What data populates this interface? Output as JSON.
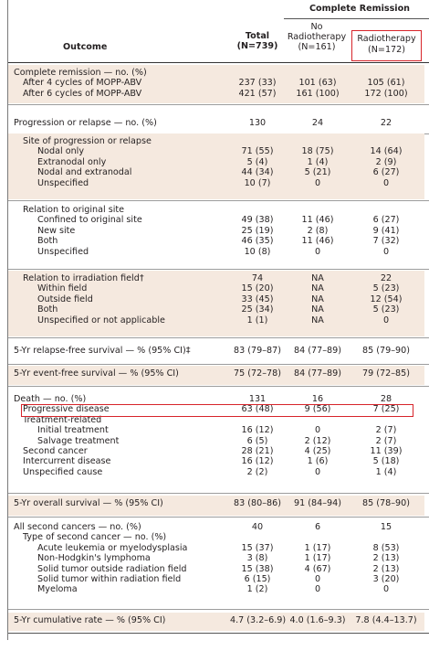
{
  "header": {
    "complete_remission": "Complete Remission",
    "outcome": "Outcome",
    "total_line1": "Total",
    "total_line2": "(N=739)",
    "norad_line1": "No",
    "norad_line2": "Radiotherapy",
    "norad_line3": "(N=161)",
    "rad_line1": "Radiotherapy",
    "rad_line2": "(N=172)"
  },
  "sections": [
    {
      "tint": true,
      "rows": [
        {
          "label": "Complete remission — no. (%)",
          "indent": 0,
          "total": "",
          "norad": "",
          "rad": ""
        },
        {
          "label": "After 4 cycles of MOPP-ABV",
          "indent": 1,
          "total": "237 (33)",
          "norad": "101 (63)",
          "rad": "105 (61)"
        },
        {
          "label": "After 6 cycles of MOPP-ABV",
          "indent": 1,
          "total": "421 (57)",
          "norad": "161 (100)",
          "rad": "172 (100)"
        }
      ]
    },
    {
      "tint": false,
      "rows": [
        {
          "label": "Progression or relapse — no. (%)",
          "indent": 0,
          "total": "130",
          "norad": "24",
          "rad": "22"
        }
      ]
    },
    {
      "tint": true,
      "rows": [
        {
          "label": "Site of progression or relapse",
          "indent": 1,
          "total": "",
          "norad": "",
          "rad": ""
        },
        {
          "label": "Nodal only",
          "indent": 2,
          "total": "71 (55)",
          "norad": "18 (75)",
          "rad": "14 (64)"
        },
        {
          "label": "Extranodal only",
          "indent": 2,
          "total": "5 (4)",
          "norad": "1 (4)",
          "rad": "2 (9)"
        },
        {
          "label": "Nodal and extranodal",
          "indent": 2,
          "total": "44 (34)",
          "norad": "5 (21)",
          "rad": "6 (27)"
        },
        {
          "label": "Unspecified",
          "indent": 2,
          "total": "10 (7)",
          "norad": "0",
          "rad": "0"
        }
      ]
    },
    {
      "tint": false,
      "rows": [
        {
          "label": "Relation to original site",
          "indent": 1,
          "total": "",
          "norad": "",
          "rad": ""
        },
        {
          "label": "Confined to original site",
          "indent": 2,
          "total": "49 (38)",
          "norad": "11 (46)",
          "rad": "6 (27)"
        },
        {
          "label": "New site",
          "indent": 2,
          "total": "25 (19)",
          "norad": "2 (8)",
          "rad": "9 (41)"
        },
        {
          "label": "Both",
          "indent": 2,
          "total": "46 (35)",
          "norad": "11 (46)",
          "rad": "7 (32)"
        },
        {
          "label": "Unspecified",
          "indent": 2,
          "total": "10 (8)",
          "norad": "0",
          "rad": "0"
        }
      ]
    },
    {
      "tint": true,
      "rows": [
        {
          "label": "Relation to irradiation field†",
          "indent": 1,
          "total": "74",
          "norad": "NA",
          "rad": "22"
        },
        {
          "label": "Within field",
          "indent": 2,
          "total": "15 (20)",
          "norad": "NA",
          "rad": "5 (23)"
        },
        {
          "label": "Outside field",
          "indent": 2,
          "total": "33 (45)",
          "norad": "NA",
          "rad": "12 (54)"
        },
        {
          "label": "Both",
          "indent": 2,
          "total": "25 (34)",
          "norad": "NA",
          "rad": "5 (23)"
        },
        {
          "label": "Unspecified or not applicable",
          "indent": 2,
          "total": "1 (1)",
          "norad": "NA",
          "rad": "0"
        }
      ]
    },
    {
      "tint": false,
      "rows": [
        {
          "label": "5-Yr relapse-free survival — % (95% CI)‡",
          "indent": 0,
          "total": "83 (79–87)",
          "norad": "84 (77–89)",
          "rad": "85 (79–90)"
        }
      ]
    },
    {
      "tint": true,
      "rows": [
        {
          "label": "5-Yr event-free survival — % (95% CI)",
          "indent": 0,
          "total": "75 (72–78)",
          "norad": "84 (77–89)",
          "rad": "79 (72–85)"
        }
      ]
    },
    {
      "tint": false,
      "rows": [
        {
          "label": "Death — no. (%)",
          "indent": 0,
          "total": "131",
          "norad": "16",
          "rad": "28"
        },
        {
          "label": "Progressive disease",
          "indent": 1,
          "total": "63 (48)",
          "norad": "9 (56)",
          "rad": "7 (25)"
        },
        {
          "label": "Treatment-related",
          "indent": 1,
          "total": "",
          "norad": "",
          "rad": ""
        },
        {
          "label": "Initial treatment",
          "indent": 2,
          "total": "16 (12)",
          "norad": "0",
          "rad": "2 (7)"
        },
        {
          "label": "Salvage treatment",
          "indent": 2,
          "total": "6 (5)",
          "norad": "2 (12)",
          "rad": "2 (7)"
        },
        {
          "label": "Second cancer",
          "indent": 1,
          "total": "28 (21)",
          "norad": "4 (25)",
          "rad": "11 (39)"
        },
        {
          "label": "Intercurrent disease",
          "indent": 1,
          "total": "16 (12)",
          "norad": "1 (6)",
          "rad": "5 (18)"
        },
        {
          "label": "Unspecified cause",
          "indent": 1,
          "total": "2 (2)",
          "norad": "0",
          "rad": "1 (4)"
        }
      ]
    },
    {
      "tint": true,
      "rows": [
        {
          "label": "5-Yr overall survival — % (95% CI)",
          "indent": 0,
          "total": "83 (80–86)",
          "norad": "91 (84–94)",
          "rad": "85 (78–90)"
        }
      ]
    },
    {
      "tint": false,
      "rows": [
        {
          "label": "All second cancers — no. (%)",
          "indent": 0,
          "total": "40",
          "norad": "6",
          "rad": "15"
        },
        {
          "label": "Type of second cancer — no. (%)",
          "indent": 1,
          "total": "",
          "norad": "",
          "rad": ""
        },
        {
          "label": "Acute leukemia or myelodysplasia",
          "indent": 2,
          "total": "15 (37)",
          "norad": "1 (17)",
          "rad": "8 (53)"
        },
        {
          "label": "Non-Hodgkin's lymphoma",
          "indent": 2,
          "total": "3 (8)",
          "norad": "1 (17)",
          "rad": "2 (13)"
        },
        {
          "label": "Solid tumor outside radiation field",
          "indent": 2,
          "total": "15 (38)",
          "norad": "4 (67)",
          "rad": "2 (13)"
        },
        {
          "label": "Solid tumor within radiation field",
          "indent": 2,
          "total": "6 (15)",
          "norad": "0",
          "rad": "3 (20)"
        },
        {
          "label": "Myeloma",
          "indent": 2,
          "total": "1 (2)",
          "norad": "0",
          "rad": "0"
        }
      ]
    },
    {
      "tint": true,
      "rows": [
        {
          "label": "5-Yr cumulative rate — % (95% CI)",
          "indent": 0,
          "total": "4.7 (3.2–6.9)",
          "norad": "4.0 (1.6–9.3)",
          "rad": "7.8 (4.4–13.7)"
        }
      ]
    }
  ]
}
